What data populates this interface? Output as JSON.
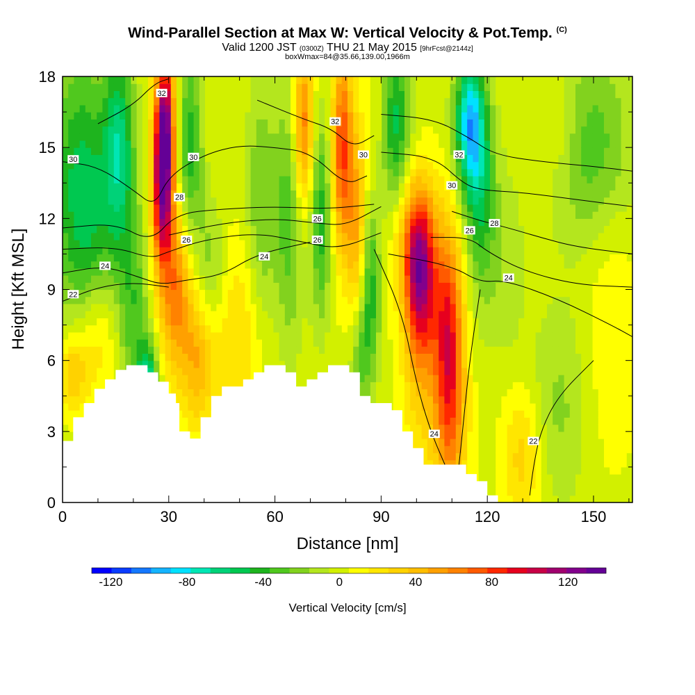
{
  "header": {
    "title": "Wind-Parallel Section at Max W: Vertical Velocity & Pot.Temp.",
    "copyright": "(C)",
    "valid_prefix": "Valid 1200 JST",
    "valid_utc": "(0300Z)",
    "valid_date": "THU 21 May 2015",
    "forecast": "[9hrFcst@2144z]",
    "box_info": "boxWmax=84@35.66,139.00,1966m"
  },
  "chart_data": {
    "type": "heatmap",
    "xlabel": "Distance [nm]",
    "ylabel": "Height [Kft MSL]",
    "xlim": [
      0,
      161
    ],
    "ylim": [
      0,
      18
    ],
    "x_ticks": [
      0,
      30,
      60,
      90,
      120,
      150
    ],
    "y_ticks": [
      0,
      3,
      6,
      9,
      12,
      15,
      18
    ],
    "colorbar": {
      "title": "Vertical Velocity [cm/s]",
      "tick_labels": [
        -120,
        -80,
        -40,
        0,
        40,
        80,
        120
      ],
      "range": [
        -130,
        140
      ],
      "colors": [
        "#0000ff",
        "#0a3cff",
        "#1478ff",
        "#14b4ff",
        "#00e1ff",
        "#00e6b4",
        "#00d278",
        "#00c850",
        "#1eb41e",
        "#50c81e",
        "#82d21e",
        "#b4e61e",
        "#d2f000",
        "#ffff00",
        "#ffe600",
        "#ffd200",
        "#ffbe00",
        "#ffa000",
        "#ff8200",
        "#ff5a00",
        "#ff2800",
        "#e6001e",
        "#c80046",
        "#a0006e",
        "#82008c",
        "#640096"
      ]
    },
    "terrain": [
      [
        0,
        2.6
      ],
      [
        3,
        2.6
      ],
      [
        3,
        3.6
      ],
      [
        6,
        3.6
      ],
      [
        6,
        4.2
      ],
      [
        9,
        4.2
      ],
      [
        9,
        4.8
      ],
      [
        12,
        4.8
      ],
      [
        12,
        5.2
      ],
      [
        15,
        5.2
      ],
      [
        15,
        5.6
      ],
      [
        18,
        5.6
      ],
      [
        18,
        5.8
      ],
      [
        24,
        5.8
      ],
      [
        24,
        5.5
      ],
      [
        27,
        5.5
      ],
      [
        27,
        5.1
      ],
      [
        30,
        5.1
      ],
      [
        30,
        4.6
      ],
      [
        32,
        4.6
      ],
      [
        32,
        4.2
      ],
      [
        33,
        4.2
      ],
      [
        33,
        3.0
      ],
      [
        36,
        3.0
      ],
      [
        36,
        2.7
      ],
      [
        39,
        2.7
      ],
      [
        39,
        3.6
      ],
      [
        42,
        3.6
      ],
      [
        42,
        4.5
      ],
      [
        45,
        4.5
      ],
      [
        45,
        4.9
      ],
      [
        51,
        4.9
      ],
      [
        51,
        5.2
      ],
      [
        54,
        5.2
      ],
      [
        54,
        5.5
      ],
      [
        57,
        5.5
      ],
      [
        57,
        5.8
      ],
      [
        63,
        5.8
      ],
      [
        63,
        5.5
      ],
      [
        66,
        5.5
      ],
      [
        66,
        4.9
      ],
      [
        69,
        4.9
      ],
      [
        69,
        5.2
      ],
      [
        72,
        5.2
      ],
      [
        72,
        5.5
      ],
      [
        75,
        5.5
      ],
      [
        75,
        5.8
      ],
      [
        81,
        5.8
      ],
      [
        81,
        5.5
      ],
      [
        84,
        5.5
      ],
      [
        84,
        4.5
      ],
      [
        87,
        4.5
      ],
      [
        87,
        4.2
      ],
      [
        93,
        4.2
      ],
      [
        93,
        3.9
      ],
      [
        96,
        3.9
      ],
      [
        96,
        3.0
      ],
      [
        99,
        3.0
      ],
      [
        99,
        2.3
      ],
      [
        102,
        2.3
      ],
      [
        102,
        1.6
      ],
      [
        114,
        1.6
      ],
      [
        114,
        1.2
      ],
      [
        117,
        1.2
      ],
      [
        117,
        0.9
      ],
      [
        120,
        0.9
      ],
      [
        120,
        0.3
      ],
      [
        123,
        0.3
      ],
      [
        123,
        0.0
      ]
    ],
    "w_field": [
      {
        "x": 3,
        "y": 5.5,
        "w": 35,
        "sx": 3,
        "sy": 1.2
      },
      {
        "x": 10,
        "y": 7,
        "w": 25,
        "sx": 4,
        "sy": 1.8
      },
      {
        "x": 5,
        "y": 14,
        "w": -45,
        "sx": 6,
        "sy": 4
      },
      {
        "x": 16,
        "y": 15,
        "w": -60,
        "sx": 3,
        "sy": 3
      },
      {
        "x": 24,
        "y": 5,
        "w": -70,
        "sx": 2,
        "sy": 1.2
      },
      {
        "x": 29,
        "y": 16,
        "w": 105,
        "sx": 2,
        "sy": 2.5
      },
      {
        "x": 28,
        "y": 13,
        "w": 85,
        "sx": 2,
        "sy": 2.5
      },
      {
        "x": 32,
        "y": 9,
        "w": 60,
        "sx": 3,
        "sy": 2.5
      },
      {
        "x": 38,
        "y": 6,
        "w": 40,
        "sx": 3,
        "sy": 2
      },
      {
        "x": 36,
        "y": 15,
        "w": -45,
        "sx": 2.5,
        "sy": 3
      },
      {
        "x": 42,
        "y": 10,
        "w": -25,
        "sx": 3,
        "sy": 2
      },
      {
        "x": 50,
        "y": 7,
        "w": 25,
        "sx": 6,
        "sy": 3
      },
      {
        "x": 56,
        "y": 12,
        "w": -30,
        "sx": 3,
        "sy": 4
      },
      {
        "x": 64,
        "y": 12,
        "w": -35,
        "sx": 3,
        "sy": 4
      },
      {
        "x": 68,
        "y": 16,
        "w": 65,
        "sx": 2,
        "sy": 2.5
      },
      {
        "x": 73,
        "y": 12,
        "w": -45,
        "sx": 2,
        "sy": 3
      },
      {
        "x": 79,
        "y": 15,
        "w": 75,
        "sx": 2,
        "sy": 3
      },
      {
        "x": 83,
        "y": 12,
        "w": 45,
        "sx": 2,
        "sy": 3
      },
      {
        "x": 87,
        "y": 9,
        "w": -45,
        "sx": 2,
        "sy": 2.5
      },
      {
        "x": 84,
        "y": 6,
        "w": -30,
        "sx": 2,
        "sy": 1.5
      },
      {
        "x": 90,
        "y": 16,
        "w": 10,
        "sx": 3,
        "sy": 2
      },
      {
        "x": 94,
        "y": 16,
        "w": -55,
        "sx": 3,
        "sy": 2.5
      },
      {
        "x": 101,
        "y": 9,
        "w": 85,
        "sx": 3,
        "sy": 2.5
      },
      {
        "x": 100,
        "y": 11,
        "w": 55,
        "sx": 4,
        "sy": 2
      },
      {
        "x": 109,
        "y": 7.5,
        "w": 80,
        "sx": 3,
        "sy": 3
      },
      {
        "x": 110,
        "y": 3,
        "w": 40,
        "sx": 3,
        "sy": 2.5
      },
      {
        "x": 103,
        "y": 4,
        "w": 20,
        "sx": 5,
        "sy": 3
      },
      {
        "x": 115,
        "y": 16,
        "w": -85,
        "sx": 3,
        "sy": 2
      },
      {
        "x": 118,
        "y": 13,
        "w": -45,
        "sx": 3,
        "sy": 3
      },
      {
        "x": 125,
        "y": 10,
        "w": -15,
        "sx": 4,
        "sy": 3
      },
      {
        "x": 130,
        "y": 2,
        "w": 30,
        "sx": 4,
        "sy": 2
      },
      {
        "x": 140,
        "y": 4,
        "w": -20,
        "sx": 6,
        "sy": 3
      },
      {
        "x": 150,
        "y": 15,
        "w": -35,
        "sx": 8,
        "sy": 3
      },
      {
        "x": 155,
        "y": 8,
        "w": 15,
        "sx": 5,
        "sy": 4
      },
      {
        "x": 140,
        "y": 16,
        "w": 15,
        "sx": 4,
        "sy": 1.5
      },
      {
        "x": 8,
        "y": 11,
        "w": -20,
        "sx": 6,
        "sy": 3
      },
      {
        "x": 20,
        "y": 8,
        "w": -35,
        "sx": 3,
        "sy": 3
      }
    ],
    "theta_contours": [
      {
        "label": "22",
        "points": [
          [
            0,
            8.5
          ],
          [
            10,
            9.1
          ],
          [
            20,
            9.3
          ],
          [
            30,
            9.1
          ]
        ]
      },
      {
        "label": "24",
        "points": [
          [
            0,
            9.7
          ],
          [
            12,
            10.0
          ],
          [
            22,
            9.5
          ],
          [
            28,
            9.2
          ],
          [
            35,
            9.4
          ],
          [
            45,
            9.6
          ],
          [
            55,
            10.5
          ],
          [
            70,
            11.0
          ]
        ]
      },
      {
        "label": "26",
        "points": [
          [
            0,
            10.7
          ],
          [
            15,
            10.8
          ],
          [
            25,
            10.3
          ],
          [
            30,
            10.6
          ],
          [
            40,
            11.1
          ],
          [
            55,
            11.4
          ],
          [
            68,
            11.0
          ],
          [
            78,
            10.7
          ],
          [
            90,
            11.4
          ]
        ]
      },
      {
        "label": "26",
        "points": [
          [
            30,
            11.3
          ],
          [
            45,
            11.8
          ],
          [
            60,
            12.0
          ],
          [
            72,
            11.8
          ],
          [
            80,
            11.7
          ],
          [
            90,
            12.5
          ]
        ]
      },
      {
        "label": "28",
        "points": [
          [
            0,
            11.6
          ],
          [
            15,
            11.8
          ],
          [
            25,
            11.0
          ],
          [
            32,
            12.2
          ],
          [
            45,
            12.4
          ],
          [
            60,
            12.5
          ],
          [
            75,
            12.4
          ],
          [
            88,
            12.6
          ]
        ]
      },
      {
        "label": "30",
        "points": [
          [
            0,
            14.4
          ],
          [
            10,
            14.2
          ],
          [
            20,
            13.2
          ],
          [
            26,
            12.5
          ],
          [
            30,
            13.8
          ],
          [
            40,
            14.7
          ],
          [
            50,
            15.1
          ],
          [
            60,
            15.0
          ],
          [
            70,
            14.8
          ],
          [
            80,
            13.4
          ],
          [
            86,
            13.8
          ]
        ]
      },
      {
        "label": "32",
        "points": [
          [
            10,
            16.0
          ],
          [
            20,
            16.8
          ],
          [
            26,
            17.7
          ],
          [
            30,
            17.9
          ]
        ]
      },
      {
        "label": "32",
        "points": [
          [
            55,
            17.0
          ],
          [
            68,
            16.2
          ],
          [
            76,
            15.8
          ],
          [
            82,
            15.0
          ],
          [
            88,
            15.5
          ]
        ]
      },
      {
        "label": "32",
        "points": [
          [
            90,
            16.4
          ],
          [
            105,
            16.2
          ],
          [
            115,
            15.4
          ],
          [
            122,
            14.7
          ],
          [
            135,
            14.4
          ],
          [
            150,
            14.2
          ],
          [
            161,
            14.0
          ]
        ]
      },
      {
        "label": "30",
        "points": [
          [
            90,
            14.8
          ],
          [
            105,
            14.6
          ],
          [
            113,
            13.5
          ],
          [
            118,
            13.2
          ],
          [
            130,
            13.1
          ],
          [
            145,
            12.8
          ],
          [
            161,
            12.5
          ]
        ]
      },
      {
        "label": "28",
        "points": [
          [
            110,
            12.3
          ],
          [
            118,
            11.9
          ],
          [
            126,
            11.6
          ],
          [
            135,
            11.2
          ],
          [
            145,
            10.8
          ],
          [
            161,
            10.5
          ]
        ]
      },
      {
        "label": "26",
        "points": [
          [
            104,
            11.2
          ],
          [
            115,
            11.2
          ],
          [
            120,
            10.6
          ],
          [
            130,
            9.8
          ],
          [
            145,
            9.2
          ],
          [
            161,
            9.1
          ]
        ]
      },
      {
        "label": "24",
        "points": [
          [
            92,
            10.5
          ],
          [
            110,
            10.0
          ],
          [
            118,
            9.3
          ],
          [
            125,
            9.4
          ],
          [
            140,
            8.6
          ],
          [
            155,
            7.5
          ],
          [
            161,
            7.0
          ]
        ]
      },
      {
        "label": "24",
        "points": [
          [
            88,
            10.7
          ],
          [
            96,
            8.0
          ],
          [
            100,
            5.0
          ],
          [
            104,
            3.0
          ],
          [
            108,
            1.6
          ]
        ]
      },
      {
        "label": "24",
        "points": [
          [
            118,
            9.0
          ],
          [
            115,
            6.0
          ],
          [
            113,
            3.0
          ],
          [
            112,
            1.6
          ]
        ]
      },
      {
        "label": "22",
        "points": [
          [
            150,
            6.0
          ],
          [
            140,
            4.5
          ],
          [
            135,
            3.0
          ],
          [
            133,
            1.5
          ],
          [
            132,
            0.3
          ]
        ]
      }
    ],
    "contour_labels": [
      {
        "text": "22",
        "x": 3,
        "y": 8.8
      },
      {
        "text": "24",
        "x": 12,
        "y": 10.0
      },
      {
        "text": "26",
        "x": 35,
        "y": 11.1
      },
      {
        "text": "28",
        "x": 33,
        "y": 12.9
      },
      {
        "text": "30",
        "x": 3,
        "y": 14.5
      },
      {
        "text": "30",
        "x": 37,
        "y": 14.6
      },
      {
        "text": "32",
        "x": 28,
        "y": 17.3
      },
      {
        "text": "24",
        "x": 57,
        "y": 10.4
      },
      {
        "text": "26",
        "x": 72,
        "y": 12.0
      },
      {
        "text": "26",
        "x": 72,
        "y": 11.1
      },
      {
        "text": "32",
        "x": 77,
        "y": 16.1
      },
      {
        "text": "30",
        "x": 85,
        "y": 14.7
      },
      {
        "text": "32",
        "x": 112,
        "y": 14.7
      },
      {
        "text": "30",
        "x": 110,
        "y": 13.4
      },
      {
        "text": "28",
        "x": 122,
        "y": 11.8
      },
      {
        "text": "26",
        "x": 115,
        "y": 11.5
      },
      {
        "text": "24",
        "x": 126,
        "y": 9.5
      },
      {
        "text": "24",
        "x": 105,
        "y": 2.9
      },
      {
        "text": "22",
        "x": 133,
        "y": 2.6
      }
    ]
  }
}
